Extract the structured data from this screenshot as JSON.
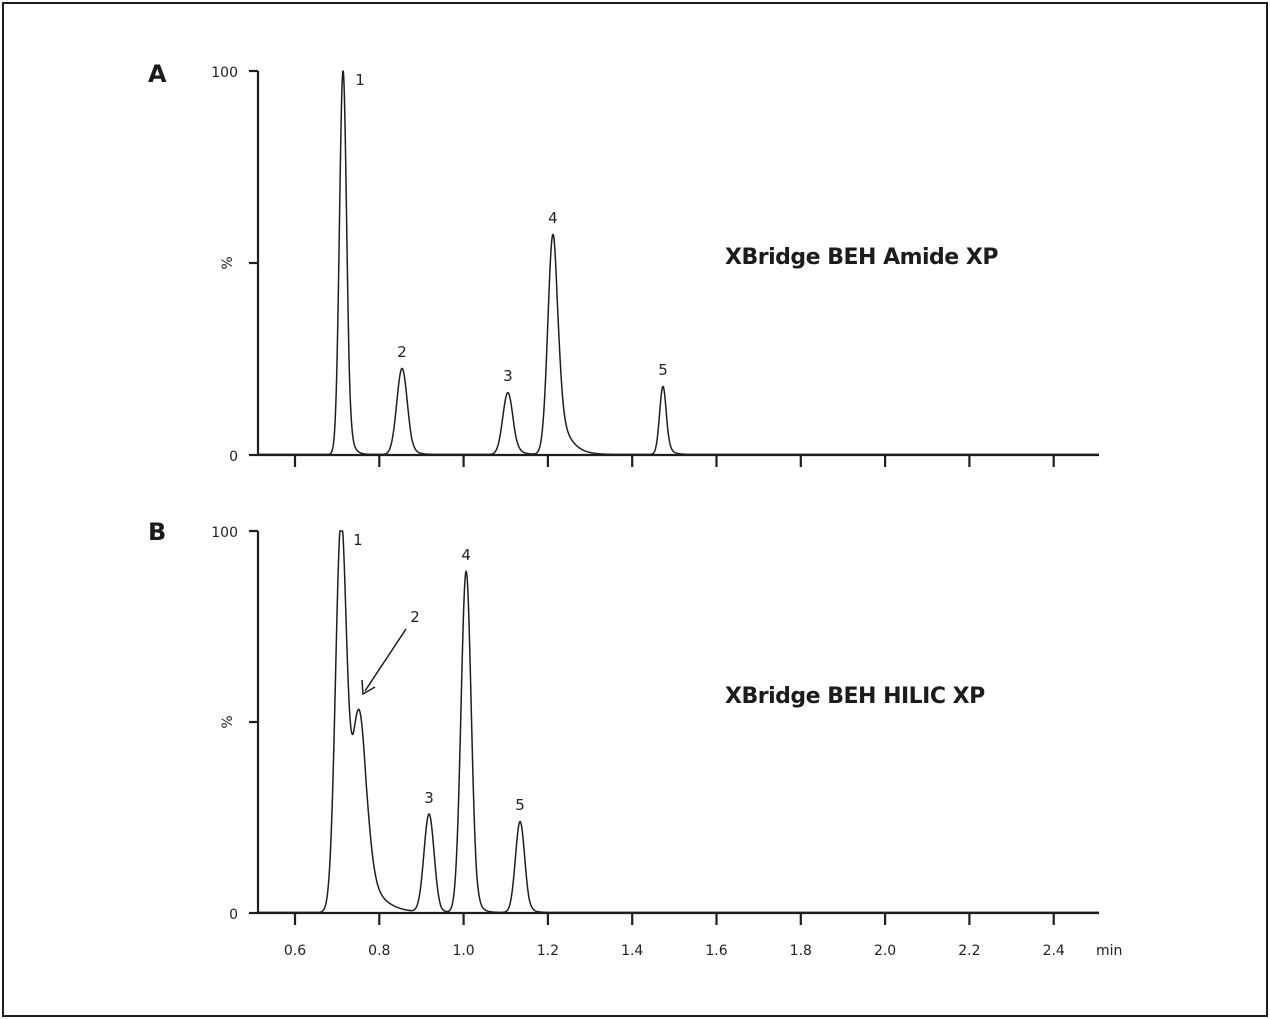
{
  "chart_data": [
    {
      "type": "line",
      "panel": "A",
      "title": "XBridge BEH Amide XP",
      "xlabel": "min",
      "ylabel": "%",
      "xlim": [
        0.51,
        2.5
      ],
      "ylim": [
        0,
        100
      ],
      "x_ticks": [
        0.6,
        0.8,
        1.0,
        1.2,
        1.4,
        1.6,
        1.8,
        2.0,
        2.2,
        2.4
      ],
      "x_tick_labels_shown": false,
      "y_ticks": [
        0,
        50,
        100
      ],
      "y_tick_labels": [
        "0",
        "",
        "100"
      ],
      "grid": false,
      "peaks": [
        {
          "label": "1",
          "rt": 0.714,
          "height": 100,
          "width": 0.0085,
          "tail": 0.01
        },
        {
          "label": "2",
          "rt": 0.854,
          "height": 22.4,
          "width": 0.0125,
          "tail": 0.014
        },
        {
          "label": "3",
          "rt": 1.105,
          "height": 16.1,
          "width": 0.012,
          "tail": 0.016
        },
        {
          "label": "4",
          "rt": 1.212,
          "height": 57.3,
          "width": 0.012,
          "tail": 0.03
        },
        {
          "label": "5",
          "rt": 1.473,
          "height": 17.7,
          "width": 0.008,
          "tail": 0.012
        }
      ]
    },
    {
      "type": "line",
      "panel": "B",
      "title": "XBridge BEH HILIC XP",
      "xlabel": "min",
      "ylabel": "%",
      "xlim": [
        0.51,
        2.5
      ],
      "ylim": [
        0,
        100
      ],
      "x_ticks": [
        0.6,
        0.8,
        1.0,
        1.2,
        1.4,
        1.6,
        1.8,
        2.0,
        2.2,
        2.4
      ],
      "x_tick_labels": [
        "0.6",
        "0.8",
        "1.0",
        "1.2",
        "1.4",
        "1.6",
        "1.8",
        "2.0",
        "2.2",
        "2.4"
      ],
      "y_ticks": [
        0,
        50,
        100
      ],
      "y_tick_labels": [
        "0",
        "",
        "100"
      ],
      "grid": false,
      "peaks": [
        {
          "label": "1",
          "rt": 0.709,
          "height": 100,
          "width": 0.013,
          "tail": 0.012
        },
        {
          "label": "2",
          "rt": 0.752,
          "height": 52,
          "width": 0.018,
          "tail": 0.04,
          "annotation": "arrow"
        },
        {
          "label": "3",
          "rt": 0.918,
          "height": 25.7,
          "width": 0.012,
          "tail": 0.01
        },
        {
          "label": "4",
          "rt": 1.006,
          "height": 89.3,
          "width": 0.012,
          "tail": 0.012
        },
        {
          "label": "5",
          "rt": 1.134,
          "height": 23.8,
          "width": 0.011,
          "tail": 0.012
        }
      ]
    }
  ],
  "figure": {
    "panel_a_letter": "A",
    "panel_b_letter": "B",
    "panel_a_title": "XBridge BEH Amide XP",
    "panel_b_title": "XBridge BEH HILIC XP",
    "y_axis_label": "%",
    "y_top_label": "100",
    "y_bottom_label": "0",
    "x_unit_label": "min",
    "x_tick_labels": [
      "0.6",
      "0.8",
      "1.0",
      "1.2",
      "1.4",
      "1.6",
      "1.8",
      "2.0",
      "2.2",
      "2.4"
    ]
  }
}
